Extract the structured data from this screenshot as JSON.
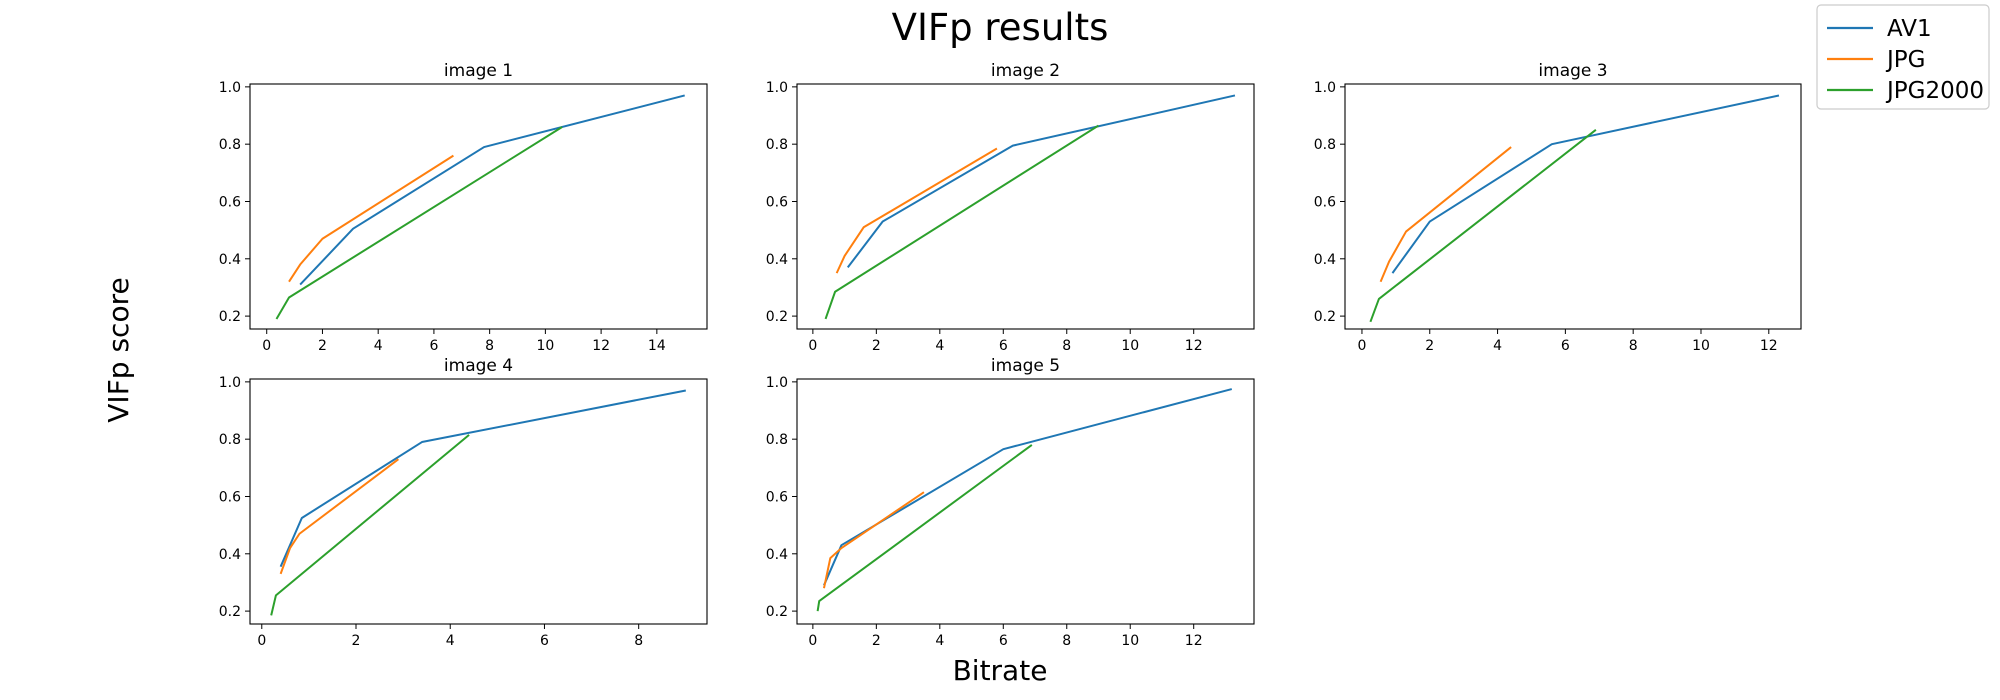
{
  "figure": {
    "title": "VIFp results",
    "xlabel": "Bitrate",
    "ylabel": "VIFp score"
  },
  "legend": {
    "placement": "top-right",
    "entries": [
      {
        "name": "AV1",
        "color": "#1f77b4"
      },
      {
        "name": "JPG",
        "color": "#ff7f0e"
      },
      {
        "name": "JPG2000",
        "color": "#2ca02c"
      }
    ]
  },
  "chart_data": [
    {
      "type": "line",
      "title": "image 1",
      "xlim": [
        -0.6,
        15.8
      ],
      "ylim": [
        0.155,
        1.01
      ],
      "xticks": [
        0,
        2,
        4,
        6,
        8,
        10,
        12,
        14
      ],
      "yticks": [
        0.2,
        0.4,
        0.6,
        0.8,
        1.0
      ],
      "series": [
        {
          "name": "AV1",
          "color": "#1f77b4",
          "x": [
            1.2,
            3.1,
            7.8,
            15.0
          ],
          "y": [
            0.31,
            0.505,
            0.79,
            0.97
          ]
        },
        {
          "name": "JPG",
          "color": "#ff7f0e",
          "x": [
            0.8,
            1.2,
            2.0,
            6.7
          ],
          "y": [
            0.32,
            0.38,
            0.47,
            0.76
          ]
        },
        {
          "name": "JPG2000",
          "color": "#2ca02c",
          "x": [
            0.35,
            0.8,
            10.6
          ],
          "y": [
            0.19,
            0.265,
            0.86
          ]
        }
      ]
    },
    {
      "type": "line",
      "title": "image 2",
      "xlim": [
        -0.5,
        13.9
      ],
      "ylim": [
        0.155,
        1.01
      ],
      "xticks": [
        0,
        2,
        4,
        6,
        8,
        10,
        12
      ],
      "yticks": [
        0.2,
        0.4,
        0.6,
        0.8,
        1.0
      ],
      "series": [
        {
          "name": "AV1",
          "color": "#1f77b4",
          "x": [
            1.1,
            2.2,
            6.3,
            13.3
          ],
          "y": [
            0.37,
            0.53,
            0.795,
            0.97
          ]
        },
        {
          "name": "JPG",
          "color": "#ff7f0e",
          "x": [
            0.75,
            1.0,
            1.6,
            5.8
          ],
          "y": [
            0.35,
            0.41,
            0.51,
            0.785
          ]
        },
        {
          "name": "JPG2000",
          "color": "#2ca02c",
          "x": [
            0.4,
            0.7,
            9.0
          ],
          "y": [
            0.19,
            0.285,
            0.865
          ]
        }
      ]
    },
    {
      "type": "line",
      "title": "image 3",
      "xlim": [
        -0.5,
        12.95
      ],
      "ylim": [
        0.155,
        1.01
      ],
      "xticks": [
        0,
        2,
        4,
        6,
        8,
        10,
        12
      ],
      "yticks": [
        0.2,
        0.4,
        0.6,
        0.8,
        1.0
      ],
      "series": [
        {
          "name": "AV1",
          "color": "#1f77b4",
          "x": [
            0.9,
            2.0,
            5.6,
            12.3
          ],
          "y": [
            0.35,
            0.53,
            0.8,
            0.97
          ]
        },
        {
          "name": "JPG",
          "color": "#ff7f0e",
          "x": [
            0.55,
            0.8,
            1.3,
            4.4
          ],
          "y": [
            0.32,
            0.39,
            0.495,
            0.79
          ]
        },
        {
          "name": "JPG2000",
          "color": "#2ca02c",
          "x": [
            0.25,
            0.5,
            6.9
          ],
          "y": [
            0.18,
            0.26,
            0.85
          ]
        }
      ]
    },
    {
      "type": "line",
      "title": "image 4",
      "xlim": [
        -0.25,
        9.45
      ],
      "ylim": [
        0.155,
        1.01
      ],
      "xticks": [
        0,
        2,
        4,
        6,
        8
      ],
      "yticks": [
        0.2,
        0.4,
        0.6,
        0.8,
        1.0
      ],
      "series": [
        {
          "name": "AV1",
          "color": "#1f77b4",
          "x": [
            0.4,
            0.85,
            3.4,
            9.0
          ],
          "y": [
            0.355,
            0.525,
            0.79,
            0.97
          ]
        },
        {
          "name": "JPG",
          "color": "#ff7f0e",
          "x": [
            0.4,
            0.6,
            0.8,
            2.9
          ],
          "y": [
            0.33,
            0.42,
            0.47,
            0.73
          ]
        },
        {
          "name": "JPG2000",
          "color": "#2ca02c",
          "x": [
            0.2,
            0.3,
            4.4
          ],
          "y": [
            0.185,
            0.255,
            0.815
          ]
        }
      ]
    },
    {
      "type": "line",
      "title": "image 5",
      "xlim": [
        -0.5,
        13.9
      ],
      "ylim": [
        0.155,
        1.01
      ],
      "xticks": [
        0,
        2,
        4,
        6,
        8,
        10,
        12
      ],
      "yticks": [
        0.2,
        0.4,
        0.6,
        0.8,
        1.0
      ],
      "series": [
        {
          "name": "AV1",
          "color": "#1f77b4",
          "x": [
            0.35,
            0.9,
            6.0,
            13.2
          ],
          "y": [
            0.29,
            0.43,
            0.765,
            0.975
          ]
        },
        {
          "name": "JPG",
          "color": "#ff7f0e",
          "x": [
            0.35,
            0.55,
            0.9,
            3.5
          ],
          "y": [
            0.28,
            0.385,
            0.42,
            0.615
          ]
        },
        {
          "name": "JPG2000",
          "color": "#2ca02c",
          "x": [
            0.15,
            0.2,
            6.9
          ],
          "y": [
            0.2,
            0.235,
            0.78
          ]
        }
      ]
    }
  ]
}
